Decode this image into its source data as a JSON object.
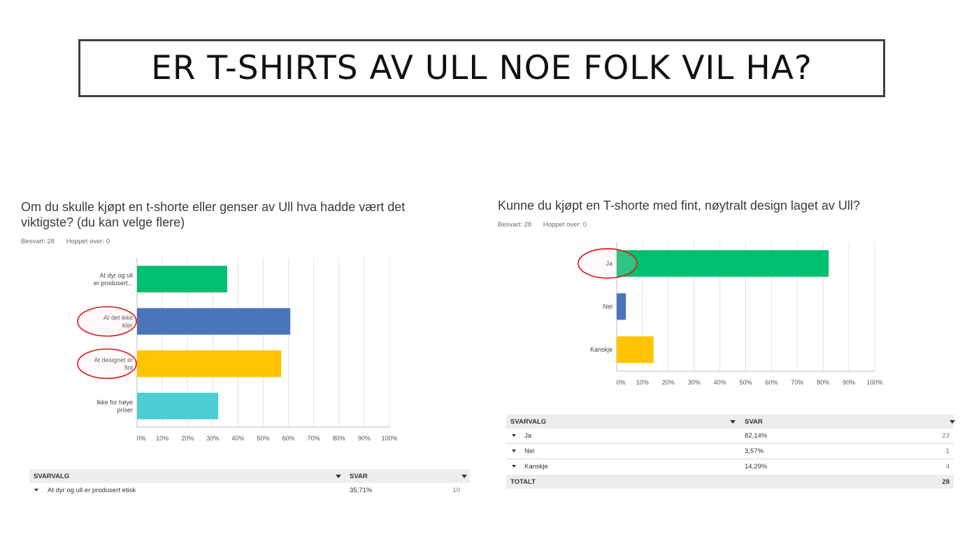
{
  "slide": {
    "title": "ER T-SHIRTS AV ULL NOE FOLK VIL HA?"
  },
  "left": {
    "question": "Om du skulle kjøpt en t-shorte eller genser av Ull hva hadde vært det viktigste? (du kan velge flere)",
    "answered": "Besvart: 28",
    "skipped": "Hoppet over: 0",
    "table": {
      "col1": "SVARVALG",
      "col2": "SVAR",
      "rows": [
        {
          "label": "At dyr og ull er produsert etisk",
          "pct": "35,71%",
          "count": "10"
        }
      ]
    }
  },
  "right": {
    "question": "Kunne du kjøpt en T-shorte med fint, nøytralt design laget av Ull?",
    "answered": "Besvart: 28",
    "skipped": "Hoppet over: 0",
    "table": {
      "col1": "SVARVALG",
      "col2": "SVAR",
      "rows": [
        {
          "label": "Ja",
          "pct": "82,14%",
          "count": "23"
        },
        {
          "label": "Nei",
          "pct": "3,57%",
          "count": "1"
        },
        {
          "label": "Kanskje",
          "pct": "14,29%",
          "count": "4"
        }
      ],
      "total_label": "TOTALT",
      "total_value": "28"
    }
  },
  "chart_data": [
    {
      "type": "bar",
      "orientation": "horizontal",
      "categories": [
        [
          "At dyr og ull",
          "er produsert..."
        ],
        [
          "At det ikke",
          "klør"
        ],
        [
          "At designet er",
          "fint"
        ],
        [
          "Ikke for høye",
          "priser"
        ]
      ],
      "values": [
        35.71,
        60.71,
        57.14,
        32.14
      ],
      "colors": [
        "#00bf6f",
        "#4a75bb",
        "#ffc300",
        "#4ccdd2"
      ],
      "xlim": [
        0,
        100
      ],
      "xticks": [
        "0%",
        "10%",
        "20%",
        "30%",
        "40%",
        "50%",
        "60%",
        "70%",
        "80%",
        "90%",
        "100%"
      ],
      "grid": true,
      "highlighted_categories": [
        1,
        2
      ]
    },
    {
      "type": "bar",
      "orientation": "horizontal",
      "categories": [
        [
          "Ja"
        ],
        [
          "Nei"
        ],
        [
          "Kanskje"
        ]
      ],
      "values": [
        82.14,
        3.57,
        14.29
      ],
      "colors": [
        "#00bf6f",
        "#4a75bb",
        "#ffc300"
      ],
      "xlim": [
        0,
        100
      ],
      "xticks": [
        "0%",
        "10%",
        "20%",
        "30%",
        "40%",
        "50%",
        "60%",
        "70%",
        "80%",
        "90%",
        "100%"
      ],
      "grid": true,
      "highlighted_categories": [
        0
      ]
    }
  ]
}
